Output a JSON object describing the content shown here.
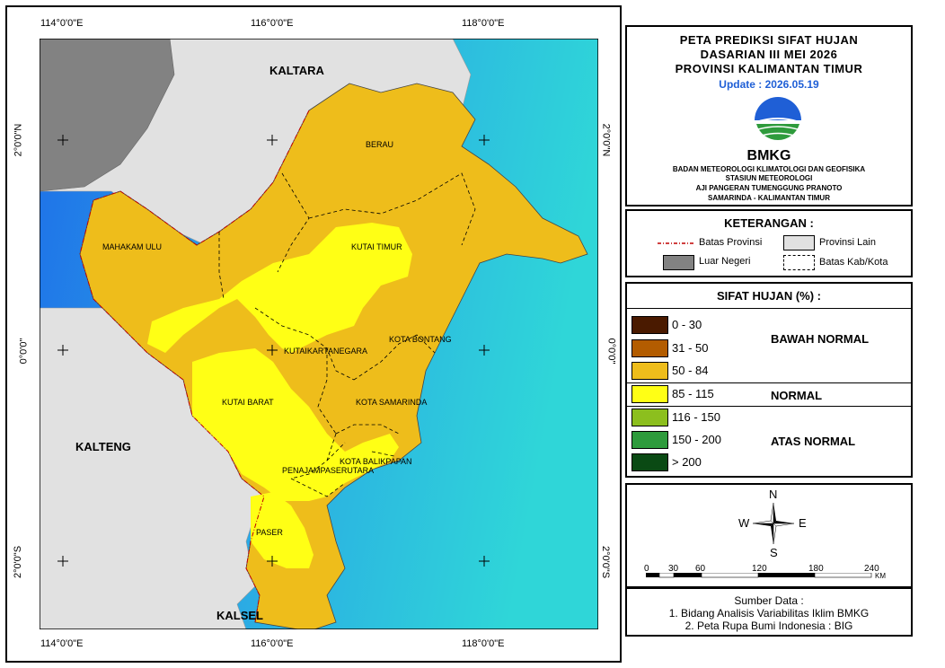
{
  "map": {
    "coords_top": [
      "114°0'0\"E",
      "116°0'0\"E",
      "118°0'0\"E"
    ],
    "coords_bottom": [
      "114°0'0\"E",
      "116°0'0\"E",
      "118°0'0\"E"
    ],
    "coords_left": [
      "2°0'0\"N",
      "0°0'0\"",
      "2°0'0\"S"
    ],
    "coords_right": [
      "2°0'0\"N",
      "0°0'0\"",
      "2°0'0\"S"
    ],
    "neighbors": {
      "kaltara": "KALTARA",
      "kalteng": "KALTENG",
      "kalsel": "KALSEL"
    },
    "regencies": {
      "berau": "BERAU",
      "mahakam_ulu": "MAHAKAM ULU",
      "kutai_timur": "KUTAI TIMUR",
      "kota_bontang": "KOTA BONTANG",
      "kutai_kartanegara": "KUTAIKARTANEGARA",
      "kutai_barat": "KUTAI BARAT",
      "kota_samarinda": "KOTA SAMARINDA",
      "kota_balikpapan": "KOTA BALIKPAPAN",
      "penajam": "PENAJAMPASERUTARA",
      "paser": "PASER"
    },
    "colors": {
      "sea_deep": "#1e6fe8",
      "sea_light": "#2fd6d8",
      "province_other": "#e1e1e1",
      "foreign": "#828282",
      "class_50_84": "#eebd1b",
      "class_85_115": "#ffff15"
    }
  },
  "title": {
    "line1": "PETA PREDIKSI SIFAT HUJAN",
    "line2": "DASARIAN III MEI 2026",
    "line3": "PROVINSI KALIMANTAN TIMUR",
    "update": "Update : 2026.05.19",
    "logo_text": "BMKG",
    "agency1": "BADAN METEOROLOGI KLIMATOLOGI DAN GEOFISIKA",
    "agency2": "STASIUN METEOROLOGI",
    "agency3": "AJI PANGERAN TUMENGGUNG PRANOTO",
    "agency4": "SAMARINDA - KALIMANTAN TIMUR"
  },
  "legend": {
    "heading": "KETERANGAN :",
    "batas_provinsi": "Batas Provinsi",
    "provinsi_lain": "Provinsi Lain",
    "luar_negeri": "Luar Negeri",
    "batas_kab": "Batas Kab/Kota"
  },
  "sifat": {
    "heading": "SIFAT HUJAN (%) :",
    "classes": [
      {
        "range": "0 - 30",
        "color": "#4a1a00"
      },
      {
        "range": "31 - 50",
        "color": "#b35c00"
      },
      {
        "range": "50 - 84",
        "color": "#eebd1b"
      },
      {
        "range": "85 - 115",
        "color": "#ffff15"
      },
      {
        "range": "116 - 150",
        "color": "#8cbf1e"
      },
      {
        "range": "150 - 200",
        "color": "#2e9b3c"
      },
      {
        "range": "> 200",
        "color": "#0a4a14"
      }
    ],
    "cat_bawah": "BAWAH NORMAL",
    "cat_normal": "NORMAL",
    "cat_atas": "ATAS NORMAL"
  },
  "compass": {
    "n": "N",
    "s": "S",
    "e": "E",
    "w": "W"
  },
  "scale": {
    "ticks": [
      "0",
      "30",
      "60",
      "120",
      "180",
      "240"
    ],
    "unit": "KM"
  },
  "source": {
    "heading": "Sumber Data :",
    "line1": "1. Bidang Analisis Variabilitas Iklim BMKG",
    "line2": "2. Peta Rupa Bumi Indonesia : BIG"
  }
}
